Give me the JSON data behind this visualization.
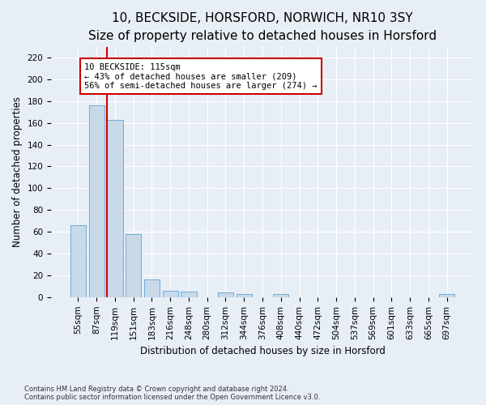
{
  "title": "10, BECKSIDE, HORSFORD, NORWICH, NR10 3SY",
  "subtitle": "Size of property relative to detached houses in Horsford",
  "xlabel": "Distribution of detached houses by size in Horsford",
  "ylabel": "Number of detached properties",
  "categories": [
    "55sqm",
    "87sqm",
    "119sqm",
    "151sqm",
    "183sqm",
    "216sqm",
    "248sqm",
    "280sqm",
    "312sqm",
    "344sqm",
    "376sqm",
    "408sqm",
    "440sqm",
    "472sqm",
    "504sqm",
    "537sqm",
    "569sqm",
    "601sqm",
    "633sqm",
    "665sqm",
    "697sqm"
  ],
  "values": [
    66,
    176,
    163,
    58,
    16,
    6,
    5,
    0,
    4,
    3,
    0,
    3,
    0,
    0,
    0,
    0,
    0,
    0,
    0,
    0,
    3
  ],
  "bar_color": "#c8d9ea",
  "bar_edge_color": "#6baed6",
  "vline_color": "#cc0000",
  "annotation_text": "10 BECKSIDE: 115sqm\n← 43% of detached houses are smaller (209)\n56% of semi-detached houses are larger (274) →",
  "annotation_box_color": "#ffffff",
  "annotation_box_edge": "#cc0000",
  "ylim": [
    0,
    230
  ],
  "yticks": [
    0,
    20,
    40,
    60,
    80,
    100,
    120,
    140,
    160,
    180,
    200,
    220
  ],
  "bg_color": "#e8eef5",
  "plot_bg_color": "#e8eef5",
  "footer": "Contains HM Land Registry data © Crown copyright and database right 2024.\nContains public sector information licensed under the Open Government Licence v3.0.",
  "title_fontsize": 11,
  "subtitle_fontsize": 9.5,
  "axis_label_fontsize": 8.5,
  "tick_fontsize": 7.5,
  "footer_fontsize": 6.0
}
